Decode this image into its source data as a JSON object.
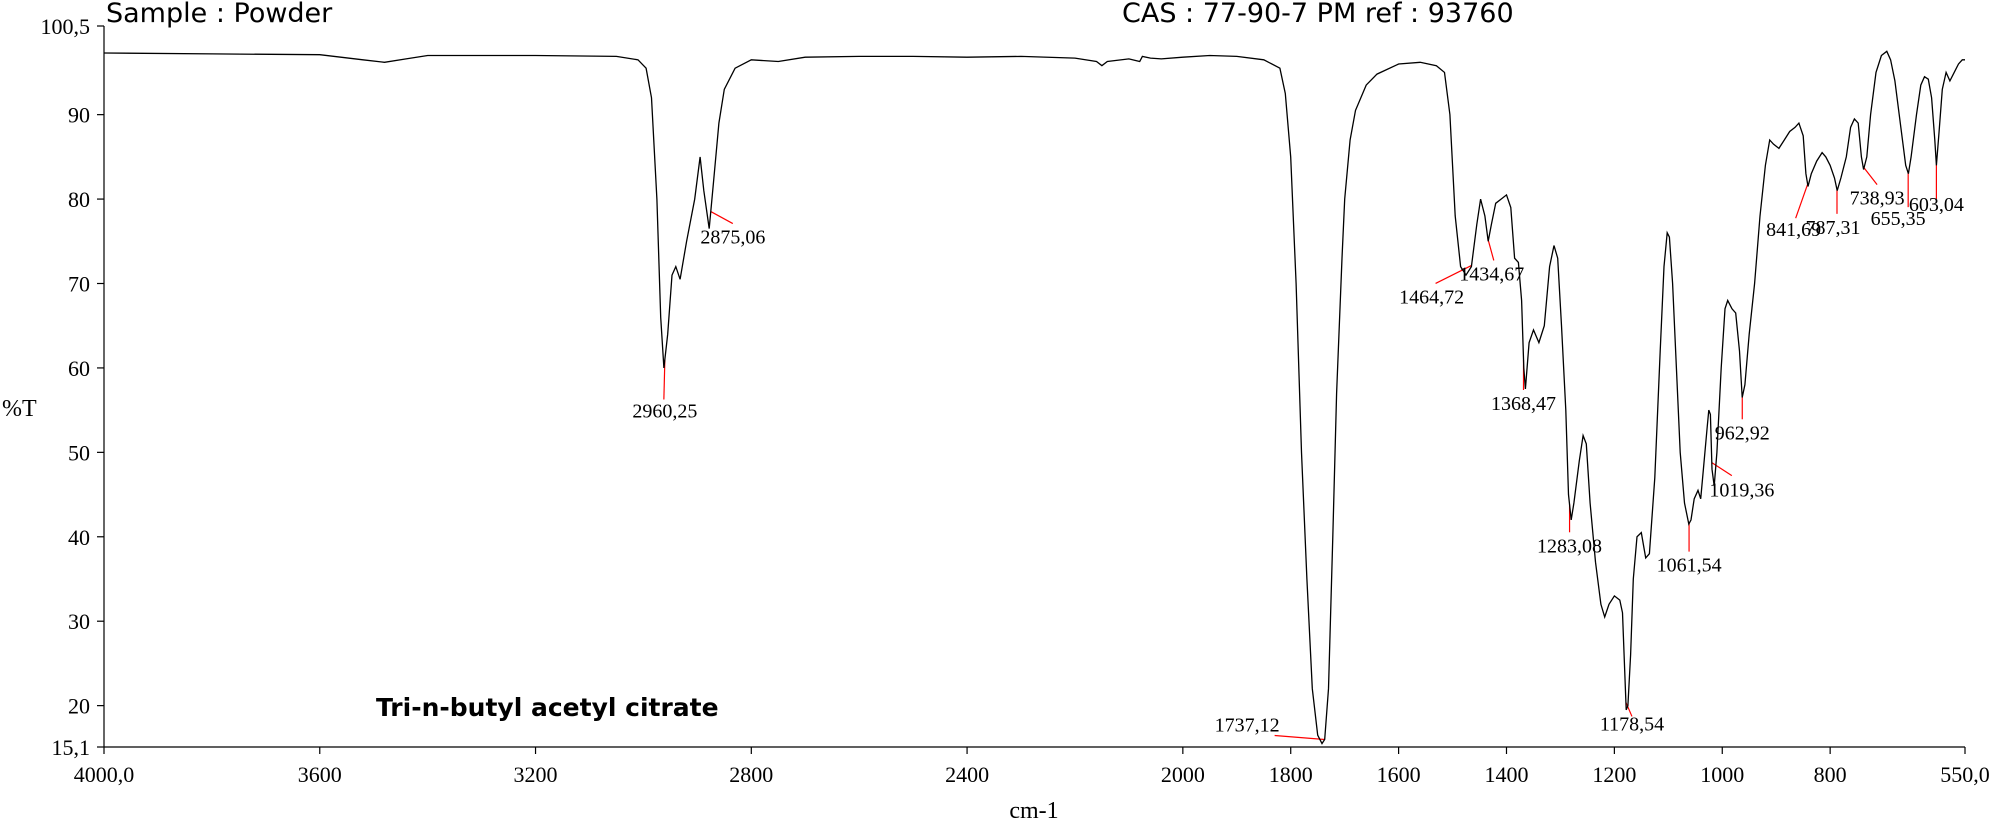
{
  "header": {
    "sample": "Sample : Powder",
    "cas_ref": "CAS : 77-90-7  PM ref : 93760"
  },
  "compound_label": "Tri-n-butyl acetyl citrate",
  "colors": {
    "trace": "#000000",
    "peak_leader": "#ff0000",
    "background": "#ffffff"
  },
  "chart_data": {
    "type": "line",
    "title": "",
    "xlabel": "cm-1",
    "ylabel": "%T",
    "xlim": [
      4000,
      550
    ],
    "ylim": [
      15.1,
      100.5
    ],
    "x_reversed": true,
    "grid": false,
    "x_tick_labels": [
      {
        "value": 4000,
        "label": "4000,0"
      },
      {
        "value": 3600,
        "label": "3600"
      },
      {
        "value": 3200,
        "label": "3200"
      },
      {
        "value": 2800,
        "label": "2800"
      },
      {
        "value": 2400,
        "label": "2400"
      },
      {
        "value": 2000,
        "label": "2000"
      },
      {
        "value": 1800,
        "label": "1800"
      },
      {
        "value": 1600,
        "label": "1600"
      },
      {
        "value": 1400,
        "label": "1400"
      },
      {
        "value": 1200,
        "label": "1200"
      },
      {
        "value": 1000,
        "label": "1000"
      },
      {
        "value": 800,
        "label": "800"
      },
      {
        "value": 550,
        "label": "550,0"
      }
    ],
    "y_tick_labels": [
      {
        "value": 100.5,
        "label": "100,5"
      },
      {
        "value": 90,
        "label": "90"
      },
      {
        "value": 80,
        "label": "80"
      },
      {
        "value": 70,
        "label": "70"
      },
      {
        "value": 60,
        "label": "60"
      },
      {
        "value": 50,
        "label": "50"
      },
      {
        "value": 40,
        "label": "40"
      },
      {
        "value": 30,
        "label": "30"
      },
      {
        "value": 20,
        "label": "20"
      },
      {
        "value": 15.1,
        "label": "15,1"
      }
    ],
    "series": [
      {
        "points": [
          [
            4000,
            97.3
          ],
          [
            3800,
            97.2
          ],
          [
            3600,
            97.1
          ],
          [
            3520,
            96.5
          ],
          [
            3480,
            96.2
          ],
          [
            3440,
            96.6
          ],
          [
            3400,
            97.0
          ],
          [
            3200,
            97.0
          ],
          [
            3050,
            96.9
          ],
          [
            3010,
            96.5
          ],
          [
            2995,
            95.5
          ],
          [
            2985,
            92.0
          ],
          [
            2975,
            80.0
          ],
          [
            2968,
            66.0
          ],
          [
            2962,
            60.0
          ],
          [
            2955,
            64.0
          ],
          [
            2947,
            71.0
          ],
          [
            2940,
            72.0
          ],
          [
            2932,
            70.5
          ],
          [
            2920,
            75.0
          ],
          [
            2905,
            80.0
          ],
          [
            2895,
            85.0
          ],
          [
            2888,
            81.0
          ],
          [
            2878,
            76.5
          ],
          [
            2870,
            82.0
          ],
          [
            2860,
            89.0
          ],
          [
            2850,
            93.0
          ],
          [
            2830,
            95.5
          ],
          [
            2800,
            96.5
          ],
          [
            2750,
            96.3
          ],
          [
            2700,
            96.8
          ],
          [
            2600,
            96.9
          ],
          [
            2500,
            96.9
          ],
          [
            2400,
            96.8
          ],
          [
            2300,
            96.9
          ],
          [
            2200,
            96.7
          ],
          [
            2160,
            96.3
          ],
          [
            2150,
            95.8
          ],
          [
            2140,
            96.3
          ],
          [
            2100,
            96.6
          ],
          [
            2080,
            96.3
          ],
          [
            2075,
            96.9
          ],
          [
            2060,
            96.7
          ],
          [
            2040,
            96.6
          ],
          [
            2000,
            96.8
          ],
          [
            1950,
            97.0
          ],
          [
            1900,
            96.9
          ],
          [
            1850,
            96.5
          ],
          [
            1820,
            95.5
          ],
          [
            1810,
            92.5
          ],
          [
            1800,
            85.0
          ],
          [
            1790,
            70.0
          ],
          [
            1780,
            50.0
          ],
          [
            1770,
            35.0
          ],
          [
            1760,
            22.0
          ],
          [
            1750,
            16.5
          ],
          [
            1742,
            15.5
          ],
          [
            1737,
            16.0
          ],
          [
            1730,
            22.0
          ],
          [
            1722,
            40.0
          ],
          [
            1715,
            57.0
          ],
          [
            1705,
            73.0
          ],
          [
            1700,
            80.0
          ],
          [
            1690,
            87.0
          ],
          [
            1680,
            90.5
          ],
          [
            1660,
            93.5
          ],
          [
            1640,
            94.8
          ],
          [
            1600,
            96.0
          ],
          [
            1560,
            96.2
          ],
          [
            1530,
            95.8
          ],
          [
            1515,
            95.0
          ],
          [
            1505,
            90.0
          ],
          [
            1495,
            78.0
          ],
          [
            1485,
            72.0
          ],
          [
            1475,
            71.0
          ],
          [
            1465,
            72.0
          ],
          [
            1455,
            77.0
          ],
          [
            1448,
            80.0
          ],
          [
            1440,
            78.0
          ],
          [
            1434,
            75.0
          ],
          [
            1428,
            77.0
          ],
          [
            1420,
            79.5
          ],
          [
            1410,
            80.0
          ],
          [
            1400,
            80.5
          ],
          [
            1392,
            79.0
          ],
          [
            1385,
            73.0
          ],
          [
            1378,
            72.5
          ],
          [
            1372,
            68.0
          ],
          [
            1368,
            60.0
          ],
          [
            1365,
            57.5
          ],
          [
            1358,
            63.0
          ],
          [
            1350,
            64.5
          ],
          [
            1340,
            63.0
          ],
          [
            1330,
            65.0
          ],
          [
            1320,
            72.0
          ],
          [
            1312,
            74.5
          ],
          [
            1305,
            73.0
          ],
          [
            1298,
            65.0
          ],
          [
            1290,
            55.0
          ],
          [
            1285,
            45.0
          ],
          [
            1280,
            42.0
          ],
          [
            1275,
            44.0
          ],
          [
            1265,
            49.0
          ],
          [
            1258,
            52.0
          ],
          [
            1252,
            51.0
          ],
          [
            1245,
            44.0
          ],
          [
            1235,
            37.0
          ],
          [
            1225,
            32.0
          ],
          [
            1218,
            30.5
          ],
          [
            1210,
            32.0
          ],
          [
            1200,
            33.0
          ],
          [
            1190,
            32.5
          ],
          [
            1185,
            31.0
          ],
          [
            1182,
            26.0
          ],
          [
            1178,
            19.5
          ],
          [
            1175,
            20.0
          ],
          [
            1170,
            26.0
          ],
          [
            1165,
            35.0
          ],
          [
            1158,
            40.0
          ],
          [
            1150,
            40.5
          ],
          [
            1142,
            37.5
          ],
          [
            1135,
            38.0
          ],
          [
            1125,
            47.0
          ],
          [
            1115,
            62.0
          ],
          [
            1108,
            72.0
          ],
          [
            1102,
            76.0
          ],
          [
            1098,
            75.5
          ],
          [
            1092,
            70.0
          ],
          [
            1085,
            60.0
          ],
          [
            1078,
            50.0
          ],
          [
            1070,
            44.0
          ],
          [
            1062,
            41.5
          ],
          [
            1058,
            42.0
          ],
          [
            1052,
            44.5
          ],
          [
            1045,
            45.5
          ],
          [
            1040,
            44.5
          ],
          [
            1035,
            48.0
          ],
          [
            1028,
            53.0
          ],
          [
            1025,
            55.0
          ],
          [
            1022,
            54.5
          ],
          [
            1019,
            48.0
          ],
          [
            1015,
            46.0
          ],
          [
            1010,
            50.0
          ],
          [
            1002,
            60.0
          ],
          [
            995,
            67.0
          ],
          [
            990,
            68.0
          ],
          [
            982,
            67.0
          ],
          [
            975,
            66.5
          ],
          [
            968,
            62.0
          ],
          [
            963,
            56.5
          ],
          [
            958,
            58.0
          ],
          [
            950,
            64.0
          ],
          [
            940,
            70.0
          ],
          [
            930,
            78.0
          ],
          [
            920,
            84.0
          ],
          [
            912,
            87.0
          ],
          [
            905,
            86.5
          ],
          [
            895,
            86.0
          ],
          [
            885,
            87.0
          ],
          [
            875,
            88.0
          ],
          [
            865,
            88.5
          ],
          [
            858,
            89.0
          ],
          [
            850,
            87.5
          ],
          [
            845,
            83.0
          ],
          [
            841,
            81.5
          ],
          [
            835,
            83.0
          ],
          [
            825,
            84.5
          ],
          [
            815,
            85.5
          ],
          [
            808,
            85.0
          ],
          [
            800,
            84.0
          ],
          [
            792,
            82.5
          ],
          [
            787,
            81.0
          ],
          [
            780,
            82.5
          ],
          [
            770,
            85.0
          ],
          [
            762,
            88.5
          ],
          [
            755,
            89.5
          ],
          [
            748,
            89.0
          ],
          [
            742,
            85.0
          ],
          [
            738,
            83.5
          ],
          [
            732,
            85.0
          ],
          [
            725,
            90.0
          ],
          [
            715,
            95.0
          ],
          [
            705,
            97.0
          ],
          [
            695,
            97.5
          ],
          [
            688,
            96.5
          ],
          [
            680,
            94.0
          ],
          [
            672,
            90.0
          ],
          [
            665,
            86.5
          ],
          [
            660,
            84.0
          ],
          [
            655,
            83.0
          ],
          [
            650,
            85.0
          ],
          [
            640,
            90.0
          ],
          [
            632,
            93.5
          ],
          [
            625,
            94.5
          ],
          [
            618,
            94.2
          ],
          [
            612,
            92.0
          ],
          [
            606,
            87.0
          ],
          [
            603,
            84.0
          ],
          [
            598,
            88.0
          ],
          [
            592,
            93.0
          ],
          [
            585,
            95.0
          ],
          [
            578,
            94.0
          ],
          [
            570,
            95.0
          ],
          [
            562,
            96.0
          ],
          [
            555,
            96.5
          ],
          [
            550,
            96.5
          ]
        ]
      }
    ],
    "annotations": [
      {
        "x": 2960.25,
        "label": "2960,25"
      },
      {
        "x": 2875.06,
        "label": "2875,06"
      },
      {
        "x": 1737.12,
        "label": "1737,12"
      },
      {
        "x": 1464.72,
        "label": "1464,72"
      },
      {
        "x": 1434.67,
        "label": "1434,67"
      },
      {
        "x": 1368.47,
        "label": "1368,47"
      },
      {
        "x": 1283.08,
        "label": "1283,08"
      },
      {
        "x": 1178.54,
        "label": "1178,54"
      },
      {
        "x": 1061.54,
        "label": "1061,54"
      },
      {
        "x": 1019.36,
        "label": "1019,36"
      },
      {
        "x": 962.92,
        "label": "962,92"
      },
      {
        "x": 841.69,
        "label": "841,69"
      },
      {
        "x": 787.31,
        "label": "787,31"
      },
      {
        "x": 738.93,
        "label": "738,93"
      },
      {
        "x": 655.35,
        "label": "655,35"
      },
      {
        "x": 603.04,
        "label": "603,04"
      }
    ]
  }
}
